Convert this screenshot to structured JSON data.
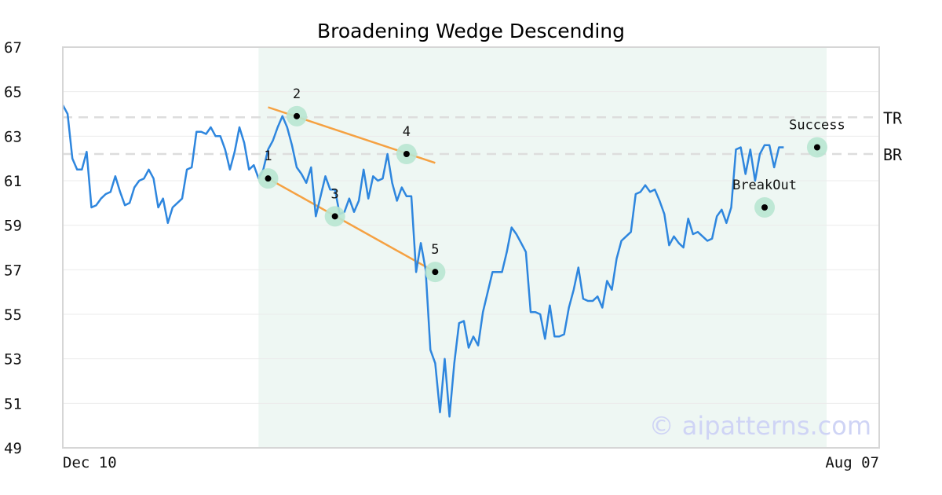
{
  "chart_data": {
    "type": "line",
    "title": "Broadening Wedge Descending",
    "ylim": [
      49,
      67
    ],
    "yticks": [
      49,
      51,
      53,
      55,
      57,
      59,
      61,
      63,
      65,
      67
    ],
    "xlim": [
      0,
      171
    ],
    "xtick_labels": [
      {
        "x": 0,
        "label": "Dec 10"
      },
      {
        "x": 171,
        "label": "Aug 07"
      }
    ],
    "grid": "horizontal",
    "watermark": "© aipatterns.com",
    "colors": {
      "price": "#2e86de",
      "trendline": "#f5a142",
      "highlight": "#eef7f3",
      "marker_ring": "#b8e6d1",
      "level": "#dddddd",
      "watermark": "#cfd4f5"
    },
    "highlight_range": [
      41,
      160
    ],
    "series": [
      {
        "values": [
          64.4,
          64.0,
          62.0,
          61.5,
          61.5,
          62.3,
          59.8,
          59.9,
          60.2,
          60.4,
          60.5,
          61.2,
          60.5,
          59.9,
          60.0,
          60.7,
          61.0,
          61.1,
          61.5,
          61.1,
          59.8,
          60.2,
          59.1,
          59.8,
          60.0,
          60.2,
          61.5,
          61.6,
          63.2,
          63.2,
          63.1,
          63.4,
          63.0,
          63.0,
          62.4,
          61.5,
          62.3,
          63.4,
          62.7,
          61.5,
          61.7,
          61.1,
          61.5,
          62.4,
          62.8,
          63.4,
          63.9,
          63.4,
          62.6,
          61.6,
          61.3,
          60.9,
          61.6,
          59.4,
          60.3,
          61.2,
          60.6,
          60.6,
          59.5,
          59.6,
          60.2,
          59.6,
          60.1,
          61.5,
          60.2,
          61.2,
          61.0,
          61.1,
          62.2,
          60.9,
          60.1,
          60.7,
          60.3,
          60.3,
          56.9,
          58.2,
          57.0,
          53.4,
          52.8,
          50.6,
          53.0,
          50.4,
          52.8,
          54.6,
          54.7,
          53.5,
          54.0,
          53.6,
          55.1,
          56.0,
          56.9,
          56.9,
          56.9,
          57.8,
          58.9,
          58.6,
          58.2,
          57.8,
          55.1,
          55.1,
          55.0,
          53.9,
          55.4,
          54.0,
          54.0,
          54.1,
          55.3,
          56.1,
          57.1,
          55.7,
          55.6,
          55.6,
          55.8,
          55.3,
          56.5,
          56.1,
          57.5,
          58.3,
          58.5,
          58.7,
          60.4,
          60.5,
          60.8,
          60.5,
          60.6,
          60.1,
          59.5,
          58.1,
          58.5,
          58.2,
          58.0,
          59.3,
          58.6,
          58.7,
          58.5,
          58.3,
          58.4,
          59.4,
          59.7,
          59.1,
          59.8,
          62.4,
          62.5,
          61.3,
          62.4,
          61.0,
          62.2,
          62.6,
          62.6,
          61.6,
          62.5,
          62.5
        ]
      }
    ],
    "points": [
      {
        "label": "1",
        "x": 43,
        "y": 61.1
      },
      {
        "label": "2",
        "x": 49,
        "y": 63.9
      },
      {
        "label": "3",
        "x": 57,
        "y": 59.4
      },
      {
        "label": "4",
        "x": 72,
        "y": 62.2
      },
      {
        "label": "5",
        "x": 78,
        "y": 56.9
      },
      {
        "label": "BreakOut",
        "x": 147,
        "y": 59.8
      },
      {
        "label": "Success",
        "x": 158,
        "y": 62.5
      }
    ],
    "trendlines": [
      {
        "from": {
          "x": 43,
          "y": 64.3
        },
        "to": {
          "x": 78,
          "y": 61.8
        }
      },
      {
        "from": {
          "x": 43,
          "y": 61.1
        },
        "to": {
          "x": 78,
          "y": 56.9
        }
      }
    ],
    "levels": [
      {
        "label": "TR",
        "y": 63.85
      },
      {
        "label": "BR",
        "y": 62.2
      }
    ]
  }
}
